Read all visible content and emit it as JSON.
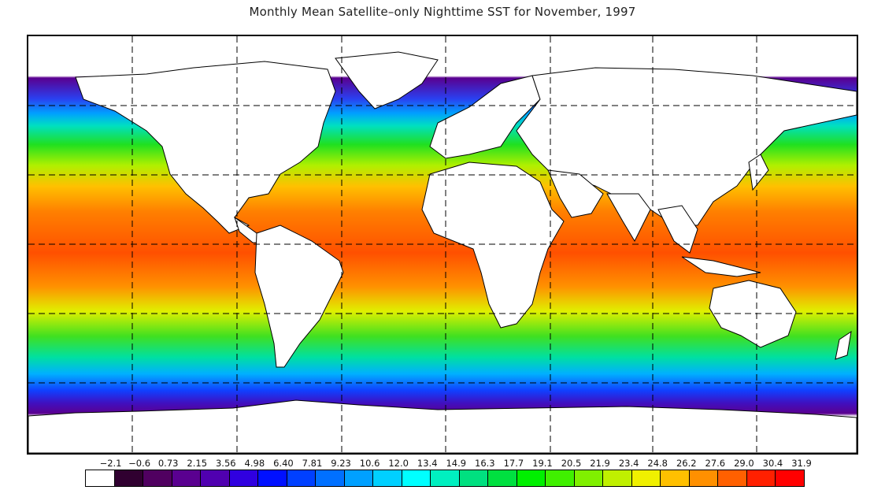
{
  "title": "Monthly Mean Satellite–only Nighttime SST for November, 1997",
  "map": {
    "projection": "equirectangular",
    "grid": "dashed",
    "land_color": "#ffffff",
    "missing_color": "#ffffff"
  },
  "legend": {
    "labels": [
      "−2.1",
      "−0.6",
      "0.73",
      "2.15",
      "3.56",
      "4.98",
      "6.40",
      "7.81",
      "9.23",
      "10.6",
      "12.0",
      "13.4",
      "14.9",
      "16.3",
      "17.7",
      "19.1",
      "20.5",
      "21.9",
      "23.4",
      "24.8",
      "26.2",
      "27.6",
      "29.0",
      "30.4",
      "31.9"
    ],
    "colors": [
      "#ffffff",
      "#300030",
      "#500060",
      "#5a0090",
      "#5000b0",
      "#3000e0",
      "#0010ff",
      "#0040ff",
      "#0070ff",
      "#00a0ff",
      "#00d0ff",
      "#00ffff",
      "#00f0c0",
      "#00e080",
      "#00e040",
      "#00f000",
      "#40f000",
      "#80f000",
      "#c0f000",
      "#f0f000",
      "#ffc000",
      "#ff9000",
      "#ff6000",
      "#ff2000",
      "#ff0000"
    ]
  }
}
